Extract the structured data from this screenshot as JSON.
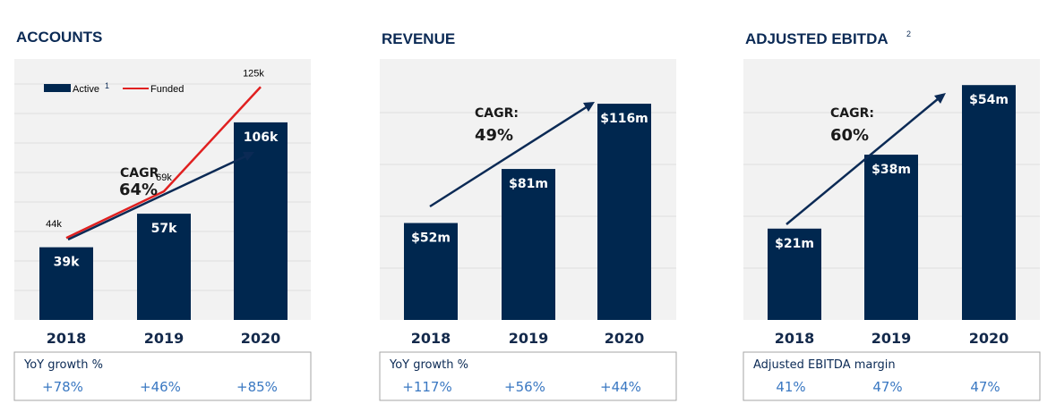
{
  "colors": {
    "bar": "#00274f",
    "funded_line": "#e02020",
    "arrow": "#0b2a55",
    "panel_bg": "#f2f2f2",
    "grid": "#dedede",
    "growth_text": "#3a78c2"
  },
  "chart_data": [
    {
      "type": "bar",
      "title": "ACCOUNTS",
      "categories": [
        "2018",
        "2019",
        "2020"
      ],
      "series": [
        {
          "name": "Active",
          "name_superscript": "1",
          "values": [
            39,
            57,
            106
          ],
          "labels": [
            "39k",
            "57k",
            "106k"
          ]
        },
        {
          "name": "Funded",
          "type": "line",
          "values": [
            44,
            69,
            125
          ],
          "labels": [
            "44k",
            "69k",
            "125k"
          ]
        }
      ],
      "ylim": [
        0,
        140
      ],
      "legend": "top-left",
      "cagr": {
        "line1": "CAGR",
        "line2": "64%"
      },
      "growth": {
        "title": "YoY growth %",
        "values": [
          "+78%",
          "+46%",
          "+85%"
        ]
      }
    },
    {
      "type": "bar",
      "title": "REVENUE",
      "categories": [
        "2018",
        "2019",
        "2020"
      ],
      "values": [
        52,
        81,
        116
      ],
      "labels": [
        "$52m",
        "$81m",
        "$116m"
      ],
      "ylim": [
        0,
        140
      ],
      "cagr": {
        "line1": "CAGR:",
        "line2": "49%"
      },
      "growth": {
        "title": "YoY growth %",
        "values": [
          "+117%",
          "+56%",
          "+44%"
        ]
      }
    },
    {
      "type": "bar",
      "title": "ADJUSTED EBITDA",
      "title_superscript": "2",
      "categories": [
        "2018",
        "2019",
        "2020"
      ],
      "values": [
        21,
        38,
        54
      ],
      "labels": [
        "$21m",
        "$38m",
        "$54m"
      ],
      "ylim": [
        0,
        60
      ],
      "cagr": {
        "line1": "CAGR:",
        "line2": "60%"
      },
      "growth": {
        "title": "Adjusted EBITDA margin",
        "values": [
          "41%",
          "47%",
          "47%"
        ]
      }
    }
  ]
}
